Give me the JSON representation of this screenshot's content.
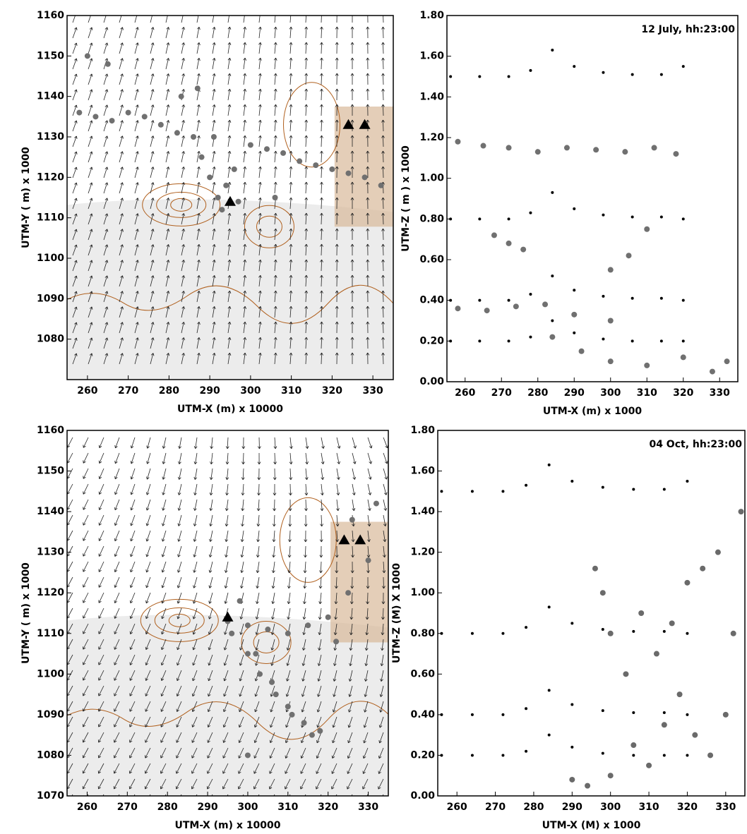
{
  "chart_data": [
    {
      "type": "scatter",
      "x_label": "UTM-X (m) x 10000",
      "y_label": "UTM-Y ( m) x 1000",
      "xlim": [
        255,
        335
      ],
      "ylim": [
        1070,
        1160
      ],
      "xticks": [
        260,
        270,
        280,
        290,
        300,
        310,
        320,
        330
      ],
      "yticks": [
        1080,
        1090,
        1100,
        1110,
        1120,
        1130,
        1140,
        1150,
        1160
      ],
      "series": [
        {
          "color": "#707070",
          "marker": "circle",
          "x": [
            258,
            262,
            266,
            270,
            274,
            278,
            282,
            286,
            288,
            290,
            292,
            294,
            296,
            300,
            304,
            308,
            312,
            316,
            320,
            324,
            328,
            332,
            260,
            265,
            283,
            287,
            291,
            293,
            297,
            306
          ],
          "y": [
            1136,
            1135,
            1134,
            1136,
            1135,
            1133,
            1131,
            1130,
            1125,
            1120,
            1115,
            1118,
            1122,
            1128,
            1127,
            1126,
            1124,
            1123,
            1122,
            1121,
            1120,
            1118,
            1150,
            1148,
            1140,
            1142,
            1130,
            1112,
            1114,
            1115
          ]
        },
        {
          "color": "#000000",
          "marker": "triangle",
          "x": [
            295,
            324,
            328
          ],
          "y": [
            1114,
            1133,
            1133
          ]
        }
      ]
    },
    {
      "type": "scatter",
      "annotation": "12 July, hh:23:00",
      "x_label": "UTM-X (m) x 1000",
      "y_label": "UTM-Z ( m ) x 1000",
      "xlim": [
        255,
        335
      ],
      "ylim": [
        0,
        1.8
      ],
      "xticks": [
        260,
        270,
        280,
        290,
        300,
        310,
        320,
        330
      ],
      "yticks": [
        {
          "value": 0,
          "label": "0.00"
        },
        {
          "value": 0.2,
          "label": "0.20"
        },
        {
          "value": 0.4,
          "label": "0.40"
        },
        {
          "value": 0.6,
          "label": "0.60"
        },
        {
          "value": 0.8,
          "label": "0.80"
        },
        {
          "value": 1,
          "label": "1.00"
        },
        {
          "value": 1.2,
          "label": "1.20"
        },
        {
          "value": 1.4,
          "label": "1.40"
        },
        {
          "value": 1.6,
          "label": "1.60"
        },
        {
          "value": 1.8,
          "label": "1.80"
        }
      ],
      "series": [
        {
          "color": "#707070",
          "marker": "circle",
          "x": [
            258,
            265,
            272,
            280,
            288,
            296,
            304,
            312,
            318,
            258,
            266,
            274,
            282,
            290,
            300,
            268,
            272,
            276,
            284,
            292,
            300,
            310,
            320,
            328,
            332,
            300,
            305,
            310
          ],
          "y": [
            1.18,
            1.16,
            1.15,
            1.13,
            1.15,
            1.14,
            1.13,
            1.15,
            1.12,
            0.36,
            0.35,
            0.37,
            0.38,
            0.33,
            0.3,
            0.72,
            0.68,
            0.65,
            0.22,
            0.15,
            0.1,
            0.08,
            0.12,
            0.05,
            0.1,
            0.55,
            0.62,
            0.75
          ]
        },
        {
          "color": "#000000",
          "marker": "dot",
          "x": [
            256,
            264,
            272,
            278,
            284,
            290,
            298,
            306,
            314,
            320
          ],
          "y": [
            1.5,
            1.5,
            1.5,
            1.53,
            1.63,
            1.55,
            1.52,
            1.51,
            1.51,
            1.55
          ]
        },
        {
          "color": "#000000",
          "marker": "dot",
          "x": [
            256,
            264,
            272,
            278,
            284,
            290,
            298,
            306,
            314,
            320
          ],
          "y": [
            0.8,
            0.8,
            0.8,
            0.83,
            0.93,
            0.85,
            0.82,
            0.81,
            0.81,
            0.8
          ]
        },
        {
          "color": "#000000",
          "marker": "dot",
          "x": [
            256,
            264,
            272,
            278,
            284,
            290,
            298,
            306,
            314,
            320
          ],
          "y": [
            0.4,
            0.4,
            0.4,
            0.43,
            0.52,
            0.45,
            0.42,
            0.41,
            0.41,
            0.4
          ]
        },
        {
          "color": "#000000",
          "marker": "dot",
          "x": [
            256,
            264,
            272,
            278,
            284,
            290,
            298,
            306,
            314,
            320
          ],
          "y": [
            0.2,
            0.2,
            0.2,
            0.22,
            0.3,
            0.24,
            0.21,
            0.2,
            0.2,
            0.2
          ]
        }
      ]
    },
    {
      "type": "scatter",
      "x_label": "UTM-X (m) x 10000",
      "y_label": "UTM-Y ( m) x 1000",
      "xlim": [
        255,
        335
      ],
      "ylim": [
        1070,
        1160
      ],
      "xticks": [
        260,
        270,
        280,
        290,
        300,
        310,
        320,
        330
      ],
      "yticks": [
        1070,
        1080,
        1090,
        1100,
        1110,
        1120,
        1130,
        1140,
        1150,
        1160
      ],
      "series": [
        {
          "color": "#707070",
          "marker": "circle",
          "x": [
            295,
            300,
            305,
            310,
            315,
            320,
            325,
            330,
            300,
            303,
            307,
            311,
            316,
            322,
            326,
            332,
            298,
            302,
            306,
            310,
            314,
            318,
            296,
            300
          ],
          "y": [
            1113,
            1112,
            1111,
            1110,
            1112,
            1114,
            1120,
            1128,
            1105,
            1100,
            1095,
            1090,
            1085,
            1108,
            1138,
            1142,
            1118,
            1105,
            1098,
            1092,
            1088,
            1086,
            1110,
            1080
          ]
        },
        {
          "color": "#000000",
          "marker": "triangle",
          "x": [
            295,
            324,
            328
          ],
          "y": [
            1114,
            1133,
            1133
          ]
        }
      ]
    },
    {
      "type": "scatter",
      "annotation": "04 Oct, hh:23:00",
      "x_label": "UTM-X (M) x 1000",
      "y_label": "UTM-Z (M) X 1000",
      "xlim": [
        255,
        335
      ],
      "ylim": [
        0,
        1.8
      ],
      "xticks": [
        260,
        270,
        280,
        290,
        300,
        310,
        320,
        330
      ],
      "yticks": [
        {
          "value": 0,
          "label": "0.00"
        },
        {
          "value": 0.2,
          "label": "0.20"
        },
        {
          "value": 0.4,
          "label": "0.40"
        },
        {
          "value": 0.6,
          "label": "0.60"
        },
        {
          "value": 0.8,
          "label": "0.80"
        },
        {
          "value": 1,
          "label": "1.00"
        },
        {
          "value": 1.2,
          "label": "1.20"
        },
        {
          "value": 1.4,
          "label": "1.40"
        },
        {
          "value": 1.6,
          "label": "1.60"
        },
        {
          "value": 1.8,
          "label": "1.80"
        }
      ],
      "series": [
        {
          "color": "#6a6a6a",
          "marker": "circle",
          "x": [
            296,
            298,
            300,
            304,
            308,
            312,
            316,
            320,
            324,
            328,
            332,
            330,
            322,
            314,
            306,
            300,
            294,
            290,
            318,
            326,
            334,
            310
          ],
          "y": [
            1.12,
            1.0,
            0.8,
            0.6,
            0.9,
            0.7,
            0.85,
            1.05,
            1.12,
            1.2,
            0.8,
            0.4,
            0.3,
            0.35,
            0.25,
            0.1,
            0.05,
            0.08,
            0.5,
            0.2,
            1.4,
            0.15
          ]
        },
        {
          "color": "#000000",
          "marker": "dot",
          "x": [
            256,
            264,
            272,
            278,
            284,
            290,
            298,
            306,
            314,
            320
          ],
          "y": [
            1.5,
            1.5,
            1.5,
            1.53,
            1.63,
            1.55,
            1.52,
            1.51,
            1.51,
            1.55
          ]
        },
        {
          "color": "#000000",
          "marker": "dot",
          "x": [
            256,
            264,
            272,
            278,
            284,
            290,
            298,
            306,
            314,
            320
          ],
          "y": [
            0.8,
            0.8,
            0.8,
            0.83,
            0.93,
            0.85,
            0.82,
            0.81,
            0.81,
            0.8
          ]
        },
        {
          "color": "#000000",
          "marker": "dot",
          "x": [
            256,
            264,
            272,
            278,
            284,
            290,
            298,
            306,
            314,
            320
          ],
          "y": [
            0.4,
            0.4,
            0.4,
            0.43,
            0.52,
            0.45,
            0.42,
            0.41,
            0.41,
            0.4
          ]
        },
        {
          "color": "#000000",
          "marker": "dot",
          "x": [
            256,
            264,
            272,
            278,
            284,
            290,
            298,
            306,
            314,
            320
          ],
          "y": [
            0.2,
            0.2,
            0.2,
            0.22,
            0.3,
            0.24,
            0.21,
            0.2,
            0.2,
            0.2
          ]
        }
      ]
    }
  ]
}
